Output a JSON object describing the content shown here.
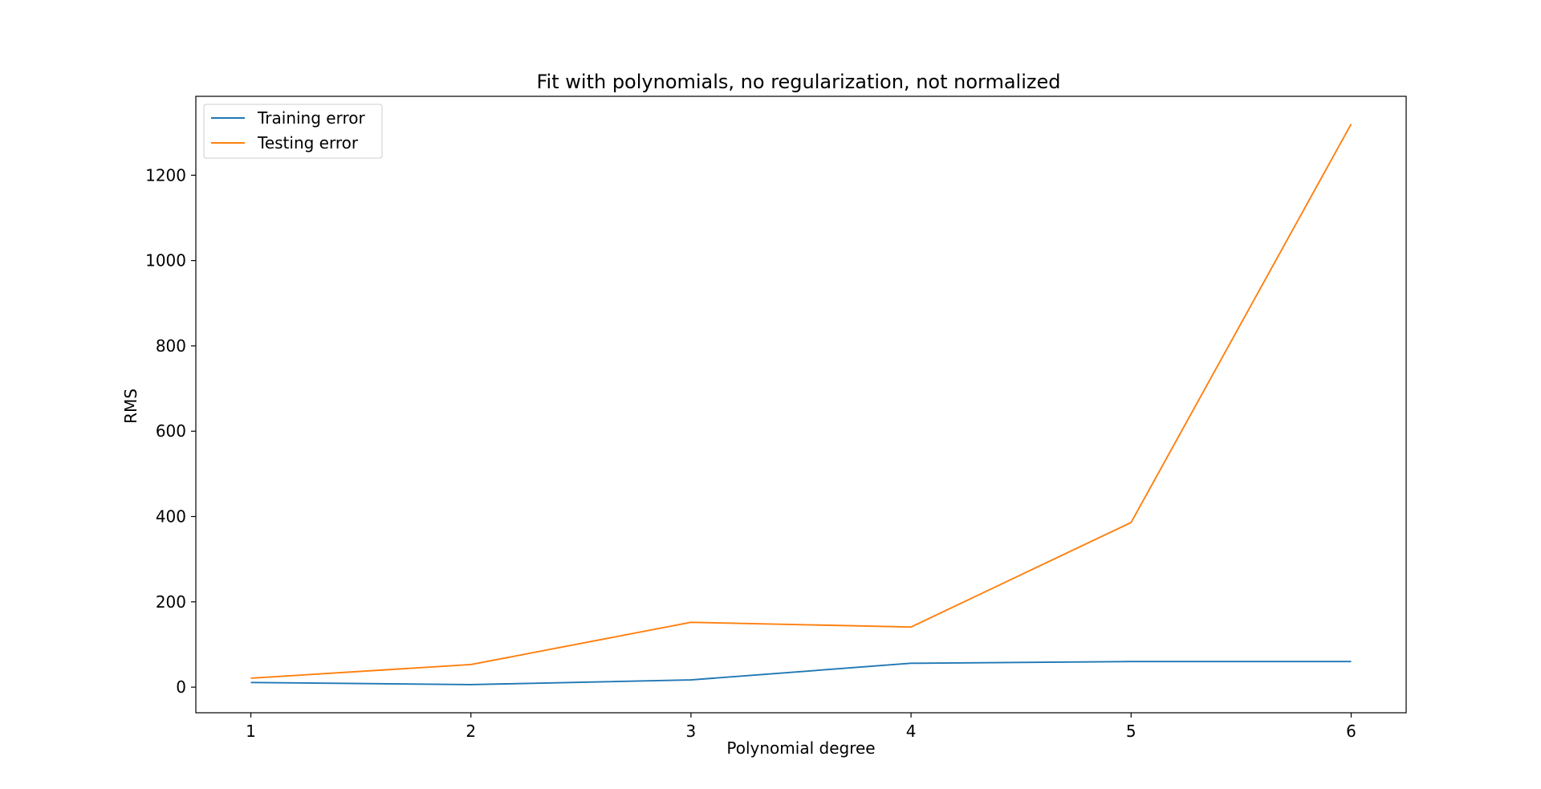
{
  "chart_data": {
    "type": "line",
    "title": "Fit with polynomials, no regularization, not normalized",
    "xlabel": "Polynomial degree",
    "ylabel": "RMS",
    "x": [
      1,
      2,
      3,
      4,
      5,
      6
    ],
    "xticks": [
      "1",
      "2",
      "3",
      "4",
      "5",
      "6"
    ],
    "xlim": [
      0.75,
      6.25
    ],
    "yticks": [
      "0",
      "200",
      "400",
      "600",
      "800",
      "1000",
      "1200"
    ],
    "ylim": [
      -60,
      1385
    ],
    "grid": false,
    "legend_position": "top-left",
    "series": [
      {
        "name": "Training error",
        "color": "#1f77b4",
        "values": [
          11,
          6,
          17,
          56,
          60,
          60
        ]
      },
      {
        "name": "Testing error",
        "color": "#ff7f0e",
        "values": [
          21,
          53,
          152,
          141,
          386,
          1320
        ]
      }
    ]
  }
}
